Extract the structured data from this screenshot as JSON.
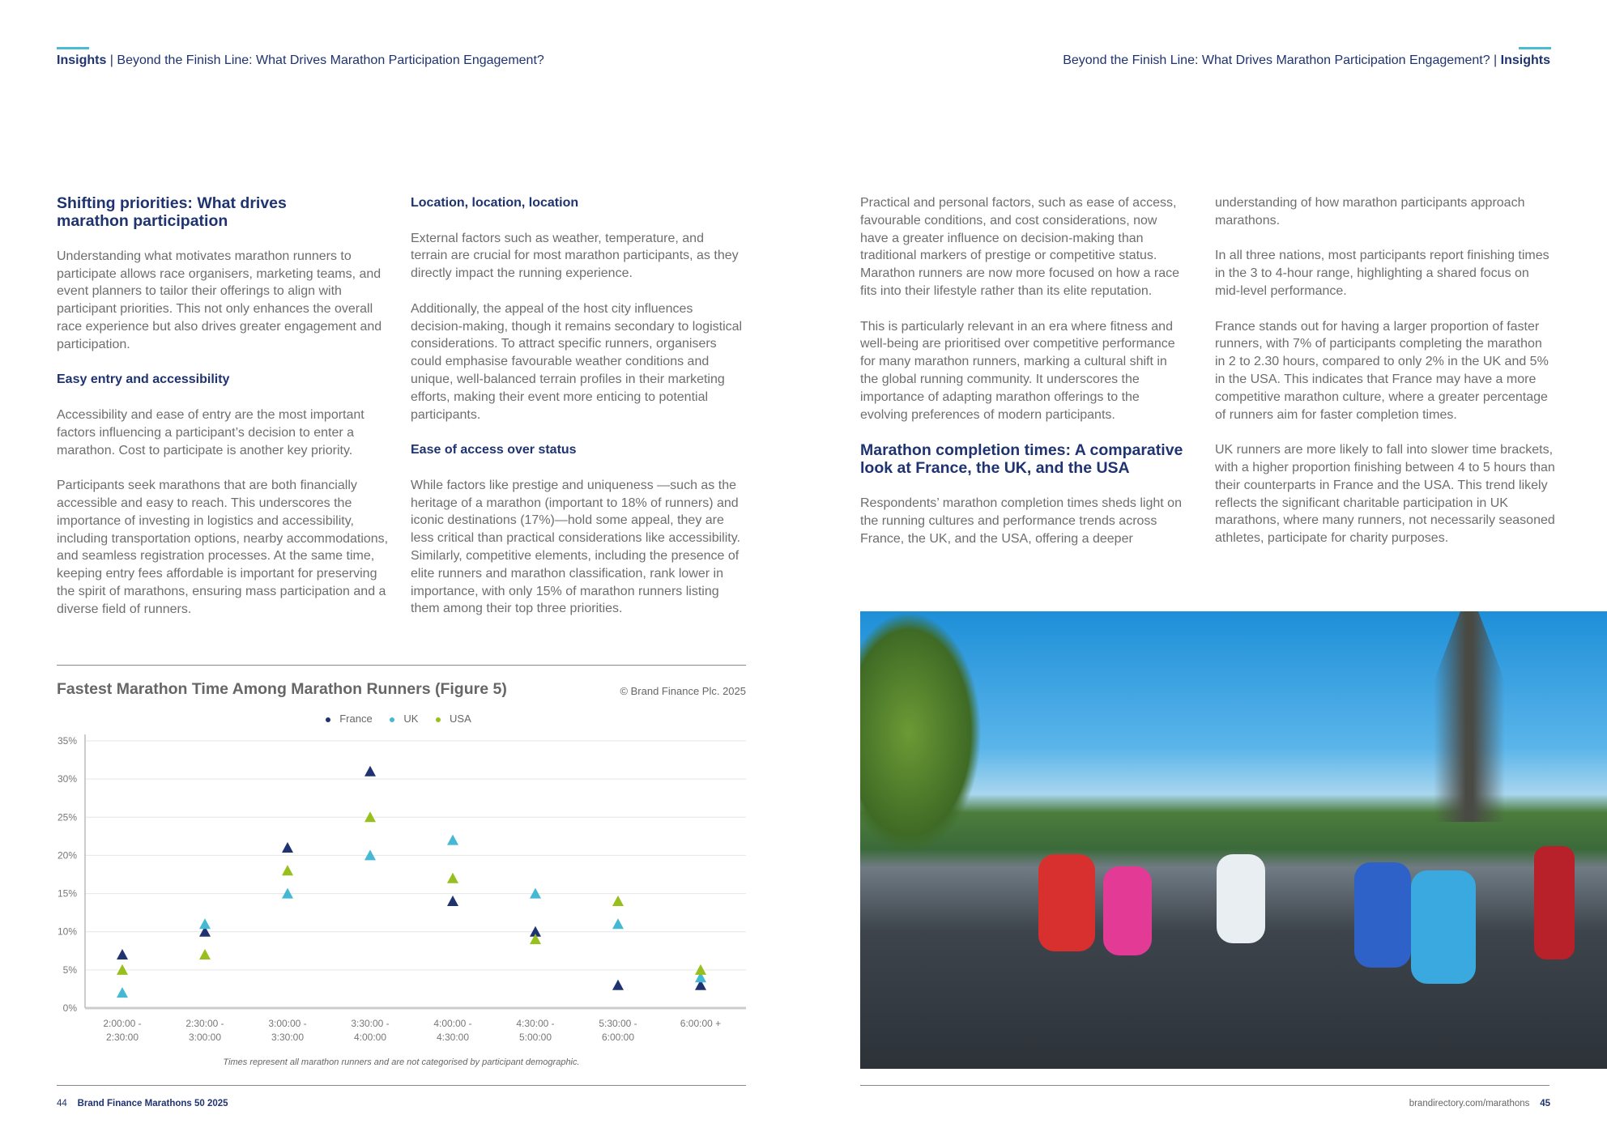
{
  "header": {
    "left_bold": "Insights",
    "left_text": " | Beyond the Finish Line: What Drives Marathon Participation Engagement?",
    "right_text": "Beyond the Finish Line: What Drives Marathon Participation Engagement? | ",
    "right_bold": "Insights"
  },
  "col1": {
    "heading": "Shifting priorities: What drives marathon participation",
    "p1": "Understanding what motivates marathon runners to participate allows race organisers, marketing teams, and event planners to tailor their offerings to align with participant priorities. This not only enhances the overall race experience but also drives greater engagement and participation.",
    "sub1": "Easy entry and accessibility",
    "p2": "Accessibility and ease of entry are the most important factors influencing a participant’s decision to enter a marathon. Cost to participate is another key priority.",
    "p3": "Participants seek marathons that are both financially accessible and easy to reach. This underscores the importance of investing in logistics and accessibility, including transportation options, nearby accommodations, and seamless registration processes. At the same time, keeping entry fees affordable is important for preserving the spirit of marathons, ensuring mass participation and a diverse field of runners."
  },
  "col2": {
    "sub1": "Location, location, location",
    "p1": "External factors such as weather, temperature, and terrain are crucial for most marathon participants, as they directly impact the running experience.",
    "p2": "Additionally, the appeal of the host city influences decision-making, though it remains secondary to logistical considerations. To attract specific runners, organisers could emphasise favourable weather conditions and unique, well-balanced terrain profiles in their marketing efforts, making their event more enticing to potential participants.",
    "sub2": "Ease of access over status",
    "p3": "While factors like prestige and uniqueness —such as the heritage of a marathon (important to 18% of runners) and iconic destinations (17%)—hold some appeal, they are less critical than practical considerations like accessibility. Similarly, competitive elements, including the presence of elite runners and marathon classification, rank lower in importance, with only 15% of marathon runners listing them among their top three priorities."
  },
  "col3": {
    "p1": "Practical and personal factors, such as ease of access, favourable conditions, and cost considerations, now have a greater influence on decision-making than traditional markers of prestige or competitive status. Marathon runners are now more focused on how a race fits into their lifestyle rather than its elite reputation.",
    "p2": "This is particularly relevant in an era where fitness and well-being are prioritised over competitive performance for many marathon runners, marking a cultural shift in the global running community. It underscores the importance of adapting marathon offerings to the evolving preferences of modern participants.",
    "heading": "Marathon completion times: A comparative look at France, the UK, and the USA",
    "p3": "Respondents’ marathon completion times sheds light on the running cultures and performance trends across France, the UK, and the USA, offering a deeper"
  },
  "col4": {
    "p1": "understanding of how marathon participants approach marathons.",
    "p2": "In all three nations, most participants report finishing times in the 3 to 4-hour range, highlighting a shared focus on mid-level performance.",
    "p3": "France stands out for having a larger proportion of faster runners, with 7% of participants completing the marathon in 2 to 2.30 hours, compared to only 2% in the UK and 5% in the USA. This indicates that France may have a more competitive marathon culture, where a greater percentage of runners aim for faster completion times.",
    "p4": "UK runners are more likely to fall into slower time brackets, with a higher proportion finishing between 4 to 5 hours than their counterparts in France and the USA. This trend likely reflects the significant charitable participation in UK marathons, where many runners, not necessarily seasoned athletes, participate for charity purposes."
  },
  "chart_data": {
    "type": "scatter",
    "title": "Fastest Marathon Time Among Marathon Runners (Figure 5)",
    "copyright": "© Brand Finance Plc. 2025",
    "note": "Times represent all marathon runners and are not categorised by participant demographic.",
    "marker": "triangle",
    "legend_position": "top",
    "grid": true,
    "categories": [
      "2:00:00 - 2:30:00",
      "2:30:00 - 3:00:00",
      "3:00:00 - 3:30:00",
      "3:30:00 - 4:00:00",
      "4:00:00 - 4:30:00",
      "4:30:00 - 5:00:00",
      "5:30:00 - 6:00:00",
      "6:00:00 +"
    ],
    "ylim": [
      0,
      35
    ],
    "yticks": [
      0,
      5,
      10,
      15,
      20,
      25,
      30,
      35
    ],
    "ytick_labels": [
      "0%",
      "5%",
      "10%",
      "15%",
      "20%",
      "25%",
      "30%",
      "35%"
    ],
    "series": [
      {
        "name": "France",
        "color": "#1f3370",
        "values": [
          7,
          10,
          21,
          31,
          14,
          10,
          3,
          3
        ]
      },
      {
        "name": "UK",
        "color": "#45b9d3",
        "values": [
          2,
          11,
          15,
          20,
          22,
          15,
          11,
          4
        ]
      },
      {
        "name": "USA",
        "color": "#97bf1e",
        "values": [
          5,
          7,
          18,
          25,
          17,
          9,
          14,
          5
        ]
      }
    ]
  },
  "footer": {
    "left_page": "44",
    "left_title": "Brand Finance Marathons 50 2025",
    "right_url": "brandirectory.com/marathons",
    "right_page": "45"
  }
}
